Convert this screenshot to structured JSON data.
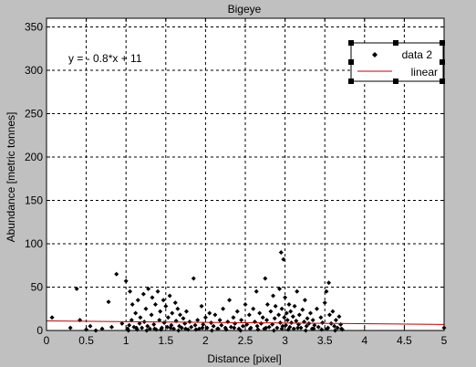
{
  "window": {
    "background": "#c0c0c0"
  },
  "chart_data": {
    "type": "scatter",
    "title": "Bigeye",
    "xlabel": "Distance [pixel]",
    "ylabel": "Abundance [metric tonnes]",
    "xlim": [
      0,
      5
    ],
    "ylim": [
      0,
      360
    ],
    "xticks": [
      "0",
      "0.5",
      "1",
      "1.5",
      "2",
      "2.5",
      "3",
      "3.5",
      "4",
      "4.5",
      "5"
    ],
    "xtick_values": [
      0,
      0.5,
      1,
      1.5,
      2,
      2.5,
      3,
      3.5,
      4,
      4.5,
      5
    ],
    "yticks": [
      "0",
      "50",
      "100",
      "150",
      "200",
      "250",
      "300",
      "350"
    ],
    "ytick_values": [
      0,
      50,
      100,
      150,
      200,
      250,
      300,
      350
    ],
    "grid": true,
    "annotation": "y = - 0.8*x + 11",
    "legend": {
      "placement": "top-right",
      "entries": [
        {
          "label": "data 2",
          "marker": "diamond",
          "color": "#000000"
        },
        {
          "label": "linear",
          "marker": "line",
          "color": "#c00000"
        }
      ]
    },
    "series": [
      {
        "name": "data 2",
        "kind": "scatter",
        "color": "#000000",
        "points": [
          [
            0.07,
            15
          ],
          [
            0.38,
            48
          ],
          [
            0.42,
            12
          ],
          [
            0.3,
            3
          ],
          [
            0.5,
            1
          ],
          [
            0.55,
            5
          ],
          [
            0.62,
            0
          ],
          [
            0.7,
            2
          ],
          [
            0.78,
            33
          ],
          [
            0.82,
            4
          ],
          [
            0.88,
            65
          ],
          [
            0.95,
            8
          ],
          [
            1.0,
            57
          ],
          [
            1.02,
            2
          ],
          [
            1.04,
            6
          ],
          [
            1.05,
            45
          ],
          [
            1.07,
            12
          ],
          [
            1.08,
            30
          ],
          [
            1.1,
            4
          ],
          [
            1.12,
            20
          ],
          [
            1.14,
            1
          ],
          [
            1.15,
            35
          ],
          [
            1.17,
            8
          ],
          [
            1.18,
            15
          ],
          [
            1.2,
            3
          ],
          [
            1.22,
            42
          ],
          [
            1.23,
            10
          ],
          [
            1.25,
            25
          ],
          [
            1.27,
            5
          ],
          [
            1.28,
            48
          ],
          [
            1.3,
            2
          ],
          [
            1.32,
            18
          ],
          [
            1.33,
            38
          ],
          [
            1.35,
            7
          ],
          [
            1.37,
            30
          ],
          [
            1.38,
            1
          ],
          [
            1.4,
            45
          ],
          [
            1.42,
            12
          ],
          [
            1.43,
            22
          ],
          [
            1.45,
            3
          ],
          [
            1.47,
            35
          ],
          [
            1.48,
            9
          ],
          [
            1.5,
            28
          ],
          [
            1.52,
            4
          ],
          [
            1.53,
            15
          ],
          [
            1.55,
            40
          ],
          [
            1.57,
            6
          ],
          [
            1.58,
            20
          ],
          [
            1.6,
            2
          ],
          [
            1.62,
            32
          ],
          [
            1.63,
            11
          ],
          [
            1.65,
            25
          ],
          [
            1.67,
            5
          ],
          [
            1.68,
            18
          ],
          [
            1.7,
            3
          ],
          [
            1.72,
            14
          ],
          [
            1.74,
            8
          ],
          [
            1.76,
            22
          ],
          [
            1.78,
            1
          ],
          [
            1.8,
            10
          ],
          [
            1.82,
            4
          ],
          [
            1.85,
            60
          ],
          [
            1.87,
            6
          ],
          [
            1.9,
            12
          ],
          [
            1.92,
            2
          ],
          [
            1.95,
            28
          ],
          [
            1.97,
            7
          ],
          [
            2.0,
            15
          ],
          [
            2.02,
            3
          ],
          [
            2.05,
            20
          ],
          [
            2.07,
            9
          ],
          [
            2.1,
            5
          ],
          [
            2.12,
            18
          ],
          [
            2.15,
            2
          ],
          [
            2.18,
            12
          ],
          [
            2.2,
            6
          ],
          [
            2.22,
            25
          ],
          [
            2.25,
            3
          ],
          [
            2.28,
            10
          ],
          [
            2.3,
            35
          ],
          [
            2.32,
            4
          ],
          [
            2.35,
            15
          ],
          [
            2.37,
            8
          ],
          [
            2.4,
            22
          ],
          [
            2.42,
            2
          ],
          [
            2.45,
            12
          ],
          [
            2.47,
            5
          ],
          [
            2.5,
            30
          ],
          [
            2.52,
            7
          ],
          [
            2.55,
            18
          ],
          [
            2.57,
            3
          ],
          [
            2.6,
            25
          ],
          [
            2.62,
            10
          ],
          [
            2.64,
            45
          ],
          [
            2.65,
            5
          ],
          [
            2.68,
            20
          ],
          [
            2.7,
            8
          ],
          [
            2.72,
            15
          ],
          [
            2.74,
            2
          ],
          [
            2.75,
            60
          ],
          [
            2.77,
            12
          ],
          [
            2.78,
            30
          ],
          [
            2.8,
            4
          ],
          [
            2.82,
            22
          ],
          [
            2.84,
            7
          ],
          [
            2.85,
            40
          ],
          [
            2.87,
            14
          ],
          [
            2.88,
            28
          ],
          [
            2.9,
            3
          ],
          [
            2.92,
            18
          ],
          [
            2.93,
            48
          ],
          [
            2.94,
            9
          ],
          [
            2.95,
            90
          ],
          [
            2.96,
            25
          ],
          [
            2.97,
            5
          ],
          [
            2.98,
            82
          ],
          [
            2.99,
            15
          ],
          [
            3.0,
            38
          ],
          [
            3.01,
            6
          ],
          [
            3.02,
            20
          ],
          [
            3.03,
            12
          ],
          [
            3.05,
            30
          ],
          [
            3.06,
            4
          ],
          [
            3.07,
            22
          ],
          [
            3.08,
            9
          ],
          [
            3.1,
            16
          ],
          [
            3.11,
            2
          ],
          [
            3.12,
            28
          ],
          [
            3.14,
            11
          ],
          [
            3.15,
            45
          ],
          [
            3.17,
            7
          ],
          [
            3.18,
            18
          ],
          [
            3.2,
            3
          ],
          [
            3.22,
            24
          ],
          [
            3.24,
            10
          ],
          [
            3.25,
            35
          ],
          [
            3.27,
            5
          ],
          [
            3.28,
            14
          ],
          [
            3.3,
            8
          ],
          [
            3.32,
            20
          ],
          [
            3.34,
            2
          ],
          [
            3.35,
            12
          ],
          [
            3.37,
            6
          ],
          [
            3.4,
            25
          ],
          [
            3.42,
            4
          ],
          [
            3.45,
            15
          ],
          [
            3.47,
            9
          ],
          [
            3.5,
            32
          ],
          [
            3.52,
            45
          ],
          [
            3.53,
            2
          ],
          [
            3.55,
            55
          ],
          [
            3.56,
            18
          ],
          [
            3.58,
            8
          ],
          [
            3.6,
            22
          ],
          [
            3.62,
            5
          ],
          [
            3.64,
            12
          ],
          [
            3.66,
            3
          ],
          [
            3.68,
            16
          ],
          [
            3.7,
            7
          ],
          [
            3.72,
            1
          ],
          [
            1.03,
            0
          ],
          [
            1.26,
            0
          ],
          [
            1.44,
            1
          ],
          [
            1.66,
            0
          ],
          [
            1.88,
            1
          ],
          [
            2.08,
            0
          ],
          [
            2.26,
            1
          ],
          [
            2.44,
            0
          ],
          [
            2.66,
            1
          ],
          [
            2.86,
            0
          ],
          [
            3.04,
            1
          ],
          [
            3.26,
            0
          ],
          [
            3.46,
            1
          ],
          [
            3.63,
            0
          ],
          [
            1.13,
            3
          ],
          [
            1.36,
            2
          ],
          [
            1.56,
            3
          ],
          [
            1.75,
            2
          ],
          [
            1.96,
            3
          ],
          [
            2.16,
            2
          ],
          [
            2.36,
            3
          ],
          [
            2.56,
            2
          ],
          [
            2.76,
            3
          ],
          [
            2.96,
            2
          ],
          [
            3.16,
            3
          ],
          [
            3.36,
            2
          ],
          [
            3.54,
            3
          ],
          [
            3.71,
            2
          ],
          [
            5.0,
            3
          ]
        ]
      },
      {
        "name": "linear",
        "kind": "line",
        "color": "#c00000",
        "x": [
          0,
          5
        ],
        "y": [
          11,
          7
        ]
      }
    ]
  }
}
